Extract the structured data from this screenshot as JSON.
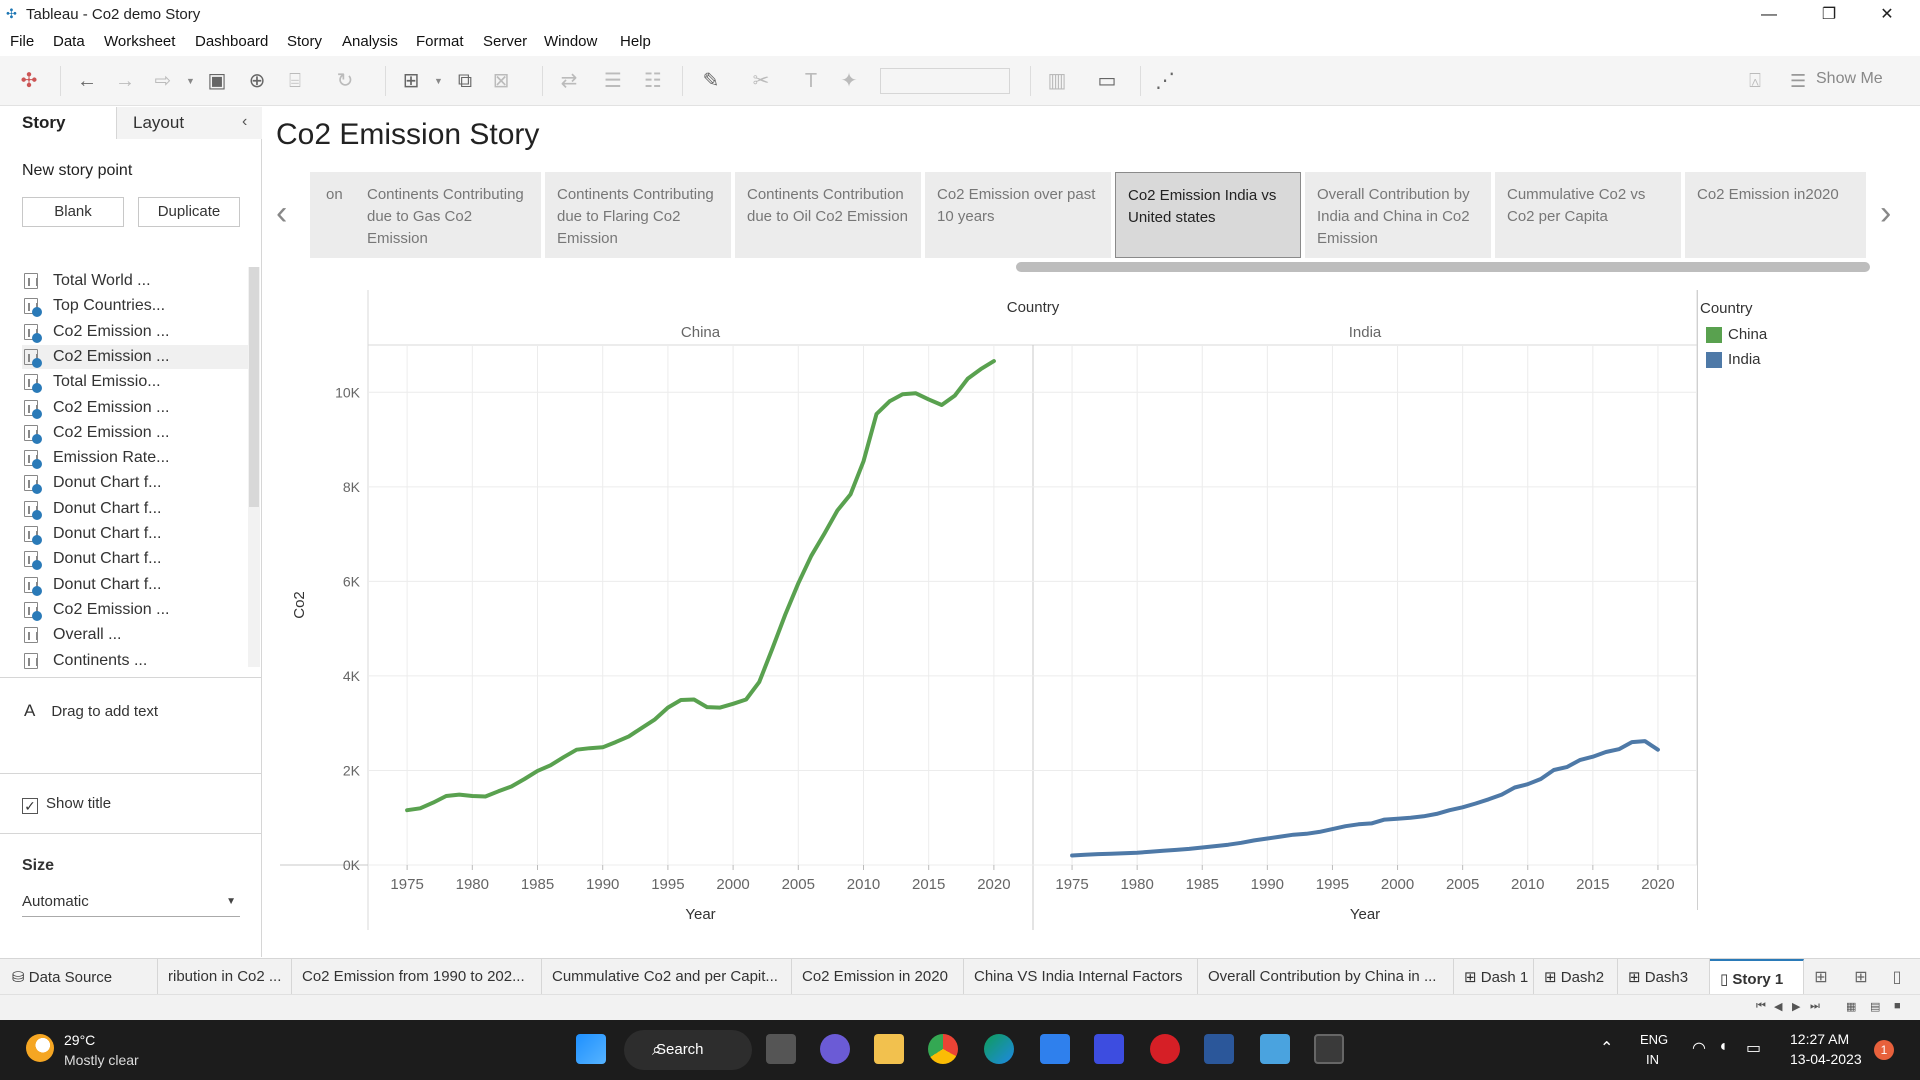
{
  "window": {
    "title": "Tableau - Co2 demo Story"
  },
  "menu": [
    "File",
    "Data",
    "Worksheet",
    "Dashboard",
    "Story",
    "Analysis",
    "Format",
    "Server",
    "Window",
    "Help"
  ],
  "toolbar": {
    "show_me": "Show Me"
  },
  "left_pane": {
    "tabs": {
      "story": "Story",
      "layout": "Layout"
    },
    "new_story_point": "New story point",
    "blank": "Blank",
    "duplicate": "Duplicate",
    "sheets": [
      "Total World ...",
      "Top Countries...",
      "Co2 Emission ...",
      "Co2 Emission ...",
      "Total Emissio...",
      "Co2 Emission ...",
      "Co2 Emission ...",
      "Emission Rate...",
      "Donut Chart f...",
      "Donut Chart f...",
      "Donut Chart f...",
      "Donut Chart f...",
      "Donut Chart f...",
      "Co2 Emission ...",
      "Overall ...",
      "Continents ..."
    ],
    "drag_text": "Drag to add text",
    "show_title": "Show title",
    "size_label": "Size",
    "size_value": "Automatic"
  },
  "story": {
    "title": "Co2 Emission Story",
    "points": [
      "on",
      "Continents Contributing due to Gas Co2 Emission",
      "Continents Contributing due to Flaring Co2 Emission",
      "Continents Contribution due to Oil Co2 Emission",
      "Co2 Emission over past 10 years",
      "Co2 Emission India vs United states",
      "Overall Contribution by India and China in Co2 Emission",
      "Cummulative Co2  vs Co2 per Capita",
      "Co2 Emission in2020"
    ],
    "active_index": 5
  },
  "legend": {
    "title": "Country",
    "items": [
      {
        "label": "China",
        "color": "#59a14f"
      },
      {
        "label": "India",
        "color": "#4e79a7"
      }
    ]
  },
  "chart_data": {
    "type": "line",
    "column_header": "Country",
    "ylabel": "Co2",
    "xlabel": "Year",
    "ylim": [
      0,
      11000
    ],
    "y_ticks": [
      "0K",
      "2K",
      "4K",
      "6K",
      "8K",
      "10K"
    ],
    "x_ticks": [
      "1975",
      "1980",
      "1985",
      "1990",
      "1995",
      "2000",
      "2005",
      "2010",
      "2015",
      "2020"
    ],
    "grid": true,
    "x": [
      1975,
      1976,
      1977,
      1978,
      1979,
      1980,
      1981,
      1982,
      1983,
      1984,
      1985,
      1986,
      1987,
      1988,
      1989,
      1990,
      1991,
      1992,
      1993,
      1994,
      1995,
      1996,
      1997,
      1998,
      1999,
      2000,
      2001,
      2002,
      2003,
      2004,
      2005,
      2006,
      2007,
      2008,
      2009,
      2010,
      2011,
      2012,
      2013,
      2014,
      2015,
      2016,
      2017,
      2018,
      2019,
      2020
    ],
    "panels": [
      {
        "name": "China",
        "color": "#59a14f",
        "values": [
          1160,
          1200,
          1320,
          1460,
          1490,
          1460,
          1450,
          1560,
          1660,
          1820,
          1990,
          2110,
          2280,
          2440,
          2470,
          2490,
          2600,
          2720,
          2900,
          3080,
          3330,
          3490,
          3500,
          3340,
          3330,
          3410,
          3500,
          3870,
          4570,
          5300,
          5960,
          6540,
          7010,
          7500,
          7840,
          8540,
          9540,
          9810,
          9960,
          9980,
          9850,
          9730,
          9930,
          10290,
          10490,
          10660
        ]
      },
      {
        "name": "India",
        "color": "#4e79a7",
        "values": [
          200,
          215,
          230,
          240,
          250,
          260,
          280,
          300,
          320,
          340,
          370,
          400,
          430,
          470,
          520,
          560,
          600,
          640,
          660,
          700,
          760,
          820,
          860,
          880,
          960,
          980,
          1000,
          1030,
          1080,
          1160,
          1220,
          1300,
          1390,
          1490,
          1640,
          1710,
          1820,
          2010,
          2070,
          2220,
          2290,
          2390,
          2450,
          2600,
          2620,
          2440
        ]
      }
    ]
  },
  "sheet_tabs": {
    "data_source": "Data Source",
    "tabs": [
      "ribution in Co2 ...",
      "Co2 Emission from 1990 to 202...",
      "Cummulative Co2 and per Capit...",
      "Co2 Emission in 2020",
      "China VS India Internal Factors",
      "Overall Contribution by China in ...",
      "Dash 1",
      "Dash2",
      "Dash3",
      "Story 1"
    ],
    "active": "Story 1"
  },
  "taskbar": {
    "temperature": "29°C",
    "condition": "Mostly clear",
    "search": "Search",
    "lang1": "ENG",
    "lang2": "IN",
    "time": "12:27 AM",
    "date": "13-04-2023",
    "notifications": "1"
  }
}
